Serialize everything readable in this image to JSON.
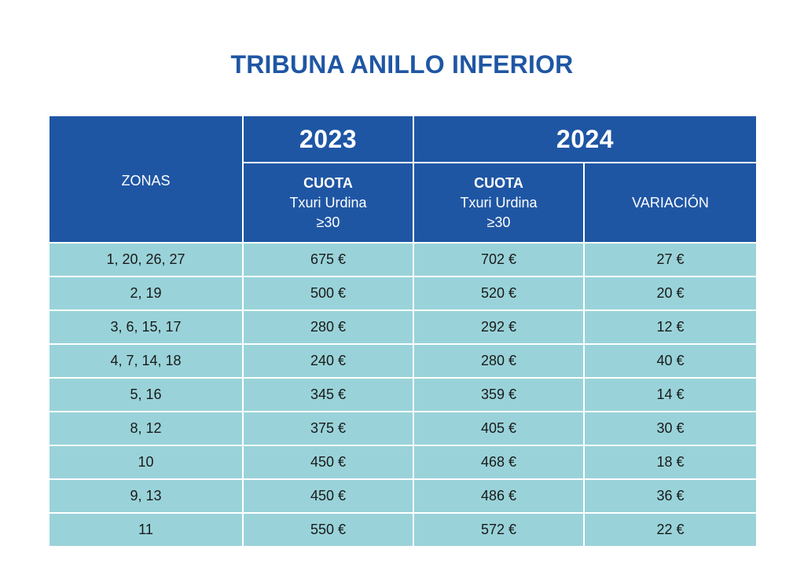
{
  "title": "TRIBUNA ANILLO INFERIOR",
  "table": {
    "zonas_header": "ZONAS",
    "year_2023": "2023",
    "year_2024": "2024",
    "cuota_label": "CUOTA",
    "cuota_line2": "Txuri Urdina",
    "cuota_line3": "≥30",
    "variacion_header": "VARIACIÓN",
    "rows": [
      {
        "zonas": "1, 20, 26, 27",
        "c2023": "675 €",
        "c2024": "702 €",
        "variacion": "27 €"
      },
      {
        "zonas": "2, 19",
        "c2023": "500 €",
        "c2024": "520 €",
        "variacion": "20 €"
      },
      {
        "zonas": "3, 6, 15, 17",
        "c2023": "280 €",
        "c2024": "292 €",
        "variacion": "12 €"
      },
      {
        "zonas": "4, 7, 14, 18",
        "c2023": "240 €",
        "c2024": "280 €",
        "variacion": "40 €"
      },
      {
        "zonas": "5, 16",
        "c2023": "345 €",
        "c2024": "359 €",
        "variacion": "14 €"
      },
      {
        "zonas": "8, 12",
        "c2023": "375 €",
        "c2024": "405 €",
        "variacion": "30 €"
      },
      {
        "zonas": "10",
        "c2023": "450 €",
        "c2024": "468 €",
        "variacion": "18 €"
      },
      {
        "zonas": "9, 13",
        "c2023": "450 €",
        "c2024": "486 €",
        "variacion": "36 €"
      },
      {
        "zonas": "11",
        "c2023": "550 €",
        "c2024": "572 €",
        "variacion": "22 €"
      }
    ]
  },
  "colors": {
    "header_blue": "#1f56a4",
    "row_teal": "#99d3d9"
  }
}
